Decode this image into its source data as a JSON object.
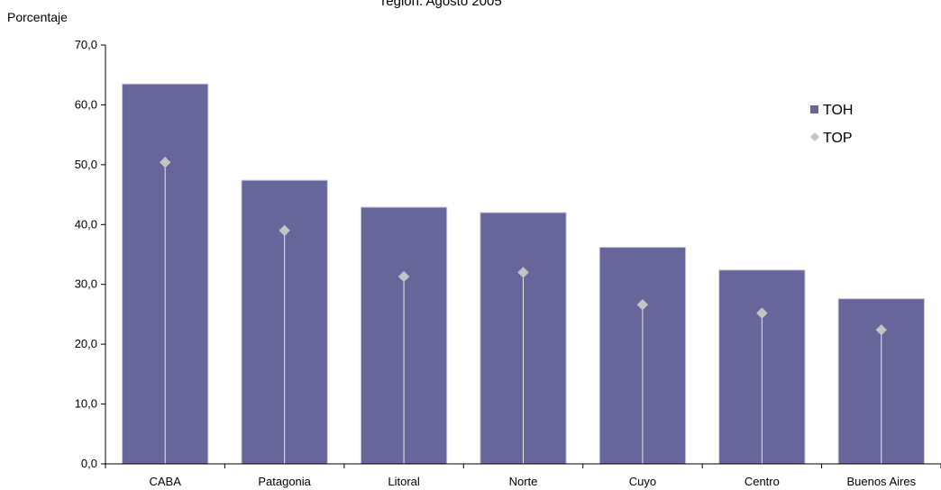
{
  "chart_data": {
    "type": "bar",
    "title": "región. Agosto 2005",
    "ylabel": "Porcentaje",
    "xlabel": "",
    "categories": [
      "CABA",
      "Patagonia",
      "Litoral",
      "Norte",
      "Cuyo",
      "Centro",
      "Buenos Aires"
    ],
    "series": [
      {
        "name": "TOH",
        "kind": "bar",
        "color": "#66669a",
        "values": [
          63.5,
          47.4,
          42.9,
          42.0,
          36.2,
          32.4,
          27.6
        ]
      },
      {
        "name": "TOP",
        "kind": "marker",
        "marker": "diamond",
        "color": "#c4c4c4",
        "values": [
          50.4,
          39.0,
          31.3,
          32.0,
          26.6,
          25.2,
          22.4
        ]
      }
    ],
    "ylim": [
      0,
      70
    ],
    "yticks": [
      "0,0",
      "10,0",
      "20,0",
      "30,0",
      "40,0",
      "50,0",
      "60,0",
      "70,0"
    ],
    "ytick_values": [
      0,
      10,
      20,
      30,
      40,
      50,
      60,
      70
    ],
    "grid": false,
    "legend_position": "top-right"
  }
}
